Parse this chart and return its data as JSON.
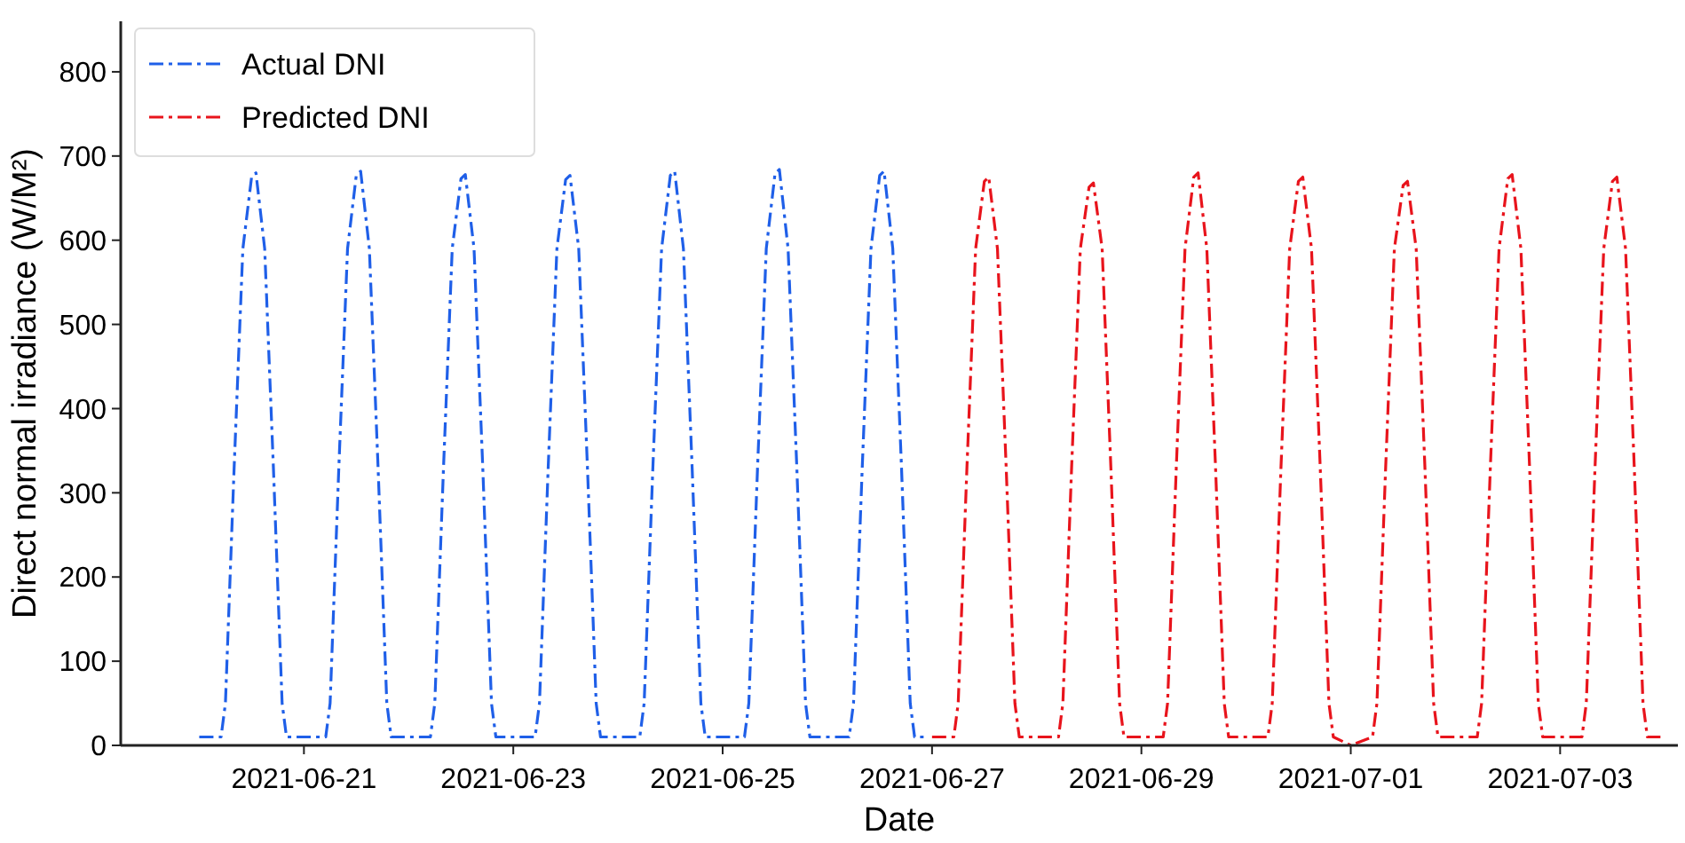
{
  "chart_data": {
    "type": "line",
    "xlabel": "Date",
    "ylabel": "Direct normal irradiance (W/M²)",
    "xlim": [
      "2021-06-19T06:00",
      "2021-07-04T03:00"
    ],
    "xticks": [
      {
        "value": "2021-06-21",
        "label": "2021-06-21"
      },
      {
        "value": "2021-06-23",
        "label": "2021-06-23"
      },
      {
        "value": "2021-06-25",
        "label": "2021-06-25"
      },
      {
        "value": "2021-06-27",
        "label": "2021-06-27"
      },
      {
        "value": "2021-06-29",
        "label": "2021-06-29"
      },
      {
        "value": "2021-07-01",
        "label": "2021-07-01"
      },
      {
        "value": "2021-07-03",
        "label": "2021-07-03"
      }
    ],
    "ylim": [
      0,
      860
    ],
    "yticks": [
      0,
      100,
      200,
      300,
      400,
      500,
      600,
      700,
      800
    ],
    "grid": false,
    "legend": "top left",
    "line_style": "dashed",
    "marker": "none",
    "series": [
      {
        "name": "Actual DNI",
        "color": "#1f5fe8",
        "x": [
          "2021-06-20T00:00",
          "2021-06-20T05:00",
          "2021-06-20T06:00",
          "2021-06-20T08:00",
          "2021-06-20T10:00",
          "2021-06-20T12:00",
          "2021-06-20T13:00",
          "2021-06-20T15:00",
          "2021-06-20T17:00",
          "2021-06-20T19:00",
          "2021-06-20T20:00",
          "2021-06-21T00:00",
          "2021-06-21T05:00",
          "2021-06-21T06:00",
          "2021-06-21T08:00",
          "2021-06-21T10:00",
          "2021-06-21T12:00",
          "2021-06-21T13:00",
          "2021-06-21T15:00",
          "2021-06-21T17:00",
          "2021-06-21T19:00",
          "2021-06-21T20:00",
          "2021-06-22T00:00",
          "2021-06-22T05:00",
          "2021-06-22T06:00",
          "2021-06-22T08:00",
          "2021-06-22T10:00",
          "2021-06-22T12:00",
          "2021-06-22T13:00",
          "2021-06-22T15:00",
          "2021-06-22T17:00",
          "2021-06-22T19:00",
          "2021-06-22T20:00",
          "2021-06-23T00:00",
          "2021-06-23T05:00",
          "2021-06-23T06:00",
          "2021-06-23T08:00",
          "2021-06-23T10:00",
          "2021-06-23T12:00",
          "2021-06-23T13:00",
          "2021-06-23T15:00",
          "2021-06-23T17:00",
          "2021-06-23T19:00",
          "2021-06-23T20:00",
          "2021-06-24T00:00",
          "2021-06-24T05:00",
          "2021-06-24T06:00",
          "2021-06-24T08:00",
          "2021-06-24T10:00",
          "2021-06-24T12:00",
          "2021-06-24T13:00",
          "2021-06-24T15:00",
          "2021-06-24T17:00",
          "2021-06-24T19:00",
          "2021-06-24T20:00",
          "2021-06-25T00:00",
          "2021-06-25T05:00",
          "2021-06-25T06:00",
          "2021-06-25T08:00",
          "2021-06-25T10:00",
          "2021-06-25T12:00",
          "2021-06-25T13:00",
          "2021-06-25T15:00",
          "2021-06-25T17:00",
          "2021-06-25T19:00",
          "2021-06-25T20:00",
          "2021-06-26T00:00",
          "2021-06-26T05:00",
          "2021-06-26T06:00",
          "2021-06-26T08:00",
          "2021-06-26T10:00",
          "2021-06-26T12:00",
          "2021-06-26T13:00",
          "2021-06-26T15:00",
          "2021-06-26T17:00",
          "2021-06-26T19:00",
          "2021-06-26T20:00",
          "2021-06-26T23:00"
        ],
        "values": [
          10,
          10,
          50,
          330,
          590,
          675,
          680,
          590,
          330,
          50,
          10,
          10,
          10,
          50,
          330,
          590,
          677,
          682,
          590,
          330,
          50,
          10,
          10,
          10,
          50,
          330,
          590,
          673,
          678,
          590,
          330,
          50,
          10,
          10,
          10,
          50,
          330,
          590,
          672,
          677,
          590,
          330,
          50,
          10,
          10,
          10,
          50,
          330,
          590,
          677,
          682,
          590,
          330,
          50,
          10,
          10,
          10,
          50,
          330,
          590,
          679,
          684,
          590,
          330,
          50,
          10,
          10,
          10,
          50,
          330,
          590,
          677,
          682,
          590,
          330,
          50,
          10,
          10
        ]
      },
      {
        "name": "Predicted DNI",
        "color": "#e8141c",
        "x": [
          "2021-06-27T00:00",
          "2021-06-27T05:00",
          "2021-06-27T06:00",
          "2021-06-27T08:00",
          "2021-06-27T10:00",
          "2021-06-27T12:00",
          "2021-06-27T13:00",
          "2021-06-27T15:00",
          "2021-06-27T17:00",
          "2021-06-27T19:00",
          "2021-06-27T20:00",
          "2021-06-28T00:00",
          "2021-06-28T05:00",
          "2021-06-28T06:00",
          "2021-06-28T08:00",
          "2021-06-28T10:00",
          "2021-06-28T12:00",
          "2021-06-28T13:00",
          "2021-06-28T15:00",
          "2021-06-28T17:00",
          "2021-06-28T19:00",
          "2021-06-28T20:00",
          "2021-06-29T00:00",
          "2021-06-29T05:00",
          "2021-06-29T06:00",
          "2021-06-29T08:00",
          "2021-06-29T10:00",
          "2021-06-29T12:00",
          "2021-06-29T13:00",
          "2021-06-29T15:00",
          "2021-06-29T17:00",
          "2021-06-29T19:00",
          "2021-06-29T20:00",
          "2021-06-30T00:00",
          "2021-06-30T05:00",
          "2021-06-30T06:00",
          "2021-06-30T08:00",
          "2021-06-30T10:00",
          "2021-06-30T12:00",
          "2021-06-30T13:00",
          "2021-06-30T15:00",
          "2021-06-30T17:00",
          "2021-06-30T19:00",
          "2021-06-30T20:00",
          "2021-07-01T00:00",
          "2021-07-01T05:00",
          "2021-07-01T06:00",
          "2021-07-01T08:00",
          "2021-07-01T10:00",
          "2021-07-01T12:00",
          "2021-07-01T13:00",
          "2021-07-01T15:00",
          "2021-07-01T17:00",
          "2021-07-01T19:00",
          "2021-07-01T20:00",
          "2021-07-02T00:00",
          "2021-07-02T05:00",
          "2021-07-02T06:00",
          "2021-07-02T08:00",
          "2021-07-02T10:00",
          "2021-07-02T12:00",
          "2021-07-02T13:00",
          "2021-07-02T15:00",
          "2021-07-02T17:00",
          "2021-07-02T19:00",
          "2021-07-02T20:00",
          "2021-07-03T00:00",
          "2021-07-03T05:00",
          "2021-07-03T06:00",
          "2021-07-03T08:00",
          "2021-07-03T10:00",
          "2021-07-03T12:00",
          "2021-07-03T13:00",
          "2021-07-03T15:00",
          "2021-07-03T17:00",
          "2021-07-03T19:00",
          "2021-07-03T20:00",
          "2021-07-03T23:00"
        ],
        "values": [
          10,
          10,
          50,
          330,
          590,
          670,
          675,
          590,
          330,
          50,
          10,
          10,
          10,
          50,
          330,
          590,
          663,
          668,
          590,
          330,
          50,
          10,
          10,
          10,
          50,
          330,
          590,
          675,
          680,
          590,
          330,
          50,
          10,
          10,
          10,
          50,
          330,
          590,
          670,
          675,
          590,
          330,
          50,
          10,
          0,
          10,
          50,
          330,
          590,
          665,
          670,
          590,
          330,
          50,
          10,
          10,
          10,
          50,
          330,
          590,
          673,
          678,
          590,
          330,
          50,
          10,
          10,
          10,
          50,
          330,
          590,
          670,
          675,
          590,
          330,
          50,
          10,
          10
        ]
      }
    ]
  }
}
